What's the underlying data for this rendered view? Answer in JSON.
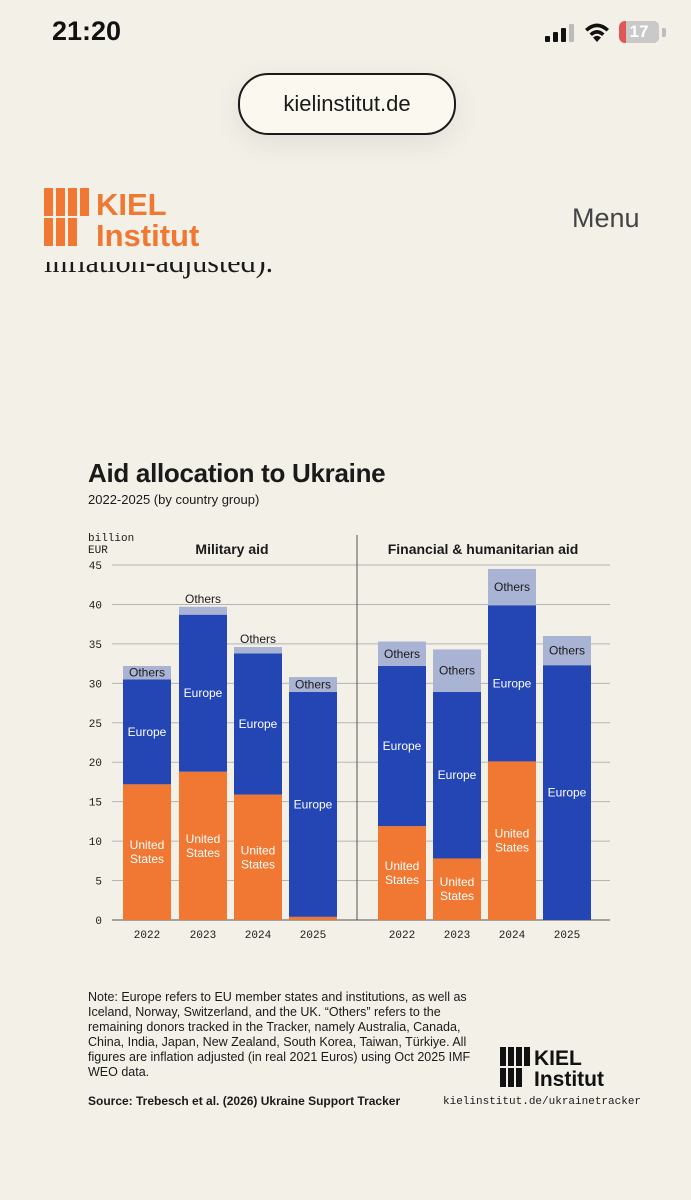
{
  "status_bar": {
    "time": "21:20",
    "battery": "17"
  },
  "browser": {
    "url": "kielinstitut.de"
  },
  "header": {
    "logo_line1": "KIEL",
    "logo_line2": "Institut",
    "menu_label": "Menu"
  },
  "article": {
    "cutoff_text": "inflation-adjusted)."
  },
  "chart_data": {
    "type": "bar",
    "stacked": true,
    "title": "Aid allocation to Ukraine",
    "subtitle": "2022-2025 (by country group)",
    "ylabel": "billion EUR",
    "ylim": [
      0,
      45
    ],
    "yticks": [
      0,
      5,
      10,
      15,
      20,
      25,
      30,
      35,
      40,
      45
    ],
    "series_names": [
      "United States",
      "Europe",
      "Others"
    ],
    "colors": {
      "United States": "#f07832",
      "Europe": "#2446b4",
      "Others": "#a9b3d4"
    },
    "panels": [
      {
        "name": "Military aid",
        "categories": [
          "2022",
          "2023",
          "2024",
          "2025"
        ],
        "series": [
          {
            "name": "United States",
            "values": [
              17.2,
              18.8,
              15.9,
              0.4
            ]
          },
          {
            "name": "Europe",
            "values": [
              13.3,
              19.9,
              17.9,
              28.5
            ]
          },
          {
            "name": "Others",
            "values": [
              1.7,
              1.0,
              0.8,
              1.9
            ]
          }
        ]
      },
      {
        "name": "Financial & humanitarian aid",
        "categories": [
          "2022",
          "2023",
          "2024",
          "2025"
        ],
        "series": [
          {
            "name": "United States",
            "values": [
              11.9,
              7.8,
              20.1,
              0
            ]
          },
          {
            "name": "Europe",
            "values": [
              20.3,
              21.1,
              19.8,
              32.3
            ]
          },
          {
            "name": "Others",
            "values": [
              3.1,
              5.4,
              4.6,
              3.7
            ]
          }
        ]
      }
    ]
  },
  "footer": {
    "note": "Note: Europe refers to EU member states and institutions, as well as Iceland, Norway, Switzerland, and the UK. “Others” refers to the remaining donors tracked in the Tracker, namely Australia, Canada, China, India, Japan, New Zealand, South Korea, Taiwan, Türkiye. All figures are inflation adjusted (in real 2021 Euros) using Oct 2025 IMF WEO data.",
    "source": "Source: Trebesch et al. (2026) Ukraine Support Tracker",
    "logo_line1": "KIEL",
    "logo_line2": "Institut",
    "url": "kielinstitut.de/ukrainetracker"
  }
}
